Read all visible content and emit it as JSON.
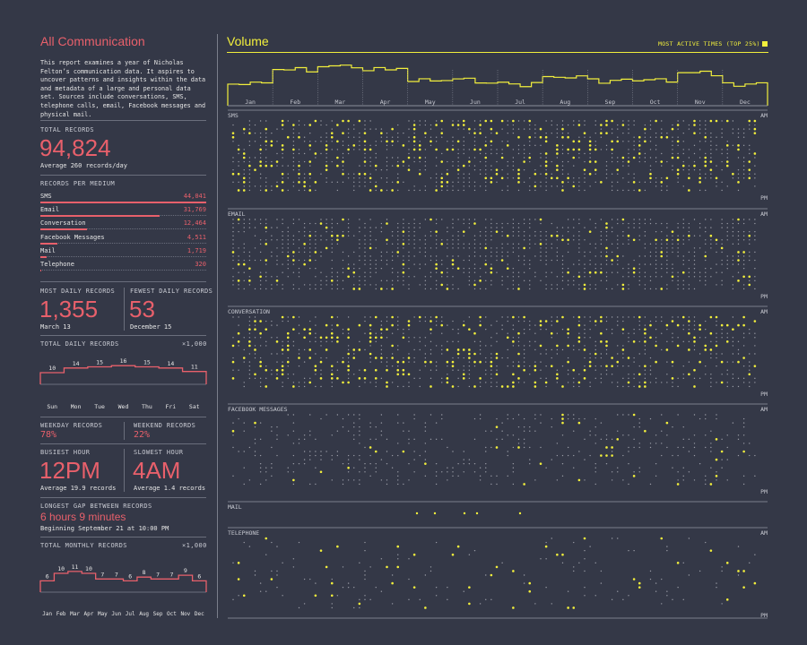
{
  "left": {
    "title": "All Communication",
    "intro": "This report examines a year of Nicholas Felton’s communication data. It aspires to uncover patterns and insights within the data and metadata of a large and personal data set. Sources include conversations, SMS, telephone calls, email, Facebook messages and physical mail.",
    "total_records_label": "TOTAL RECORDS",
    "total_records": "94,824",
    "average_note": "Average 260 records/day",
    "per_medium_label": "RECORDS PER MEDIUM",
    "mediums": [
      {
        "name": "SMS",
        "value": "44,041",
        "count": 44041
      },
      {
        "name": "Email",
        "value": "31,769",
        "count": 31769
      },
      {
        "name": "Conversation",
        "value": "12,464",
        "count": 12464
      },
      {
        "name": "Facebook Messages",
        "value": "4,511",
        "count": 4511
      },
      {
        "name": "Mail",
        "value": "1,719",
        "count": 1719
      },
      {
        "name": "Telephone",
        "value": "320",
        "count": 320
      }
    ],
    "most_daily_label": "MOST DAILY RECORDS",
    "most_daily": "1,355",
    "most_daily_date": "March 13",
    "fewest_daily_label": "FEWEST DAILY RECORDS",
    "fewest_daily": "53",
    "fewest_daily_date": "December 15",
    "weekday_label": "WEEKDAY RECORDS",
    "weekday_value": "78%",
    "weekend_label": "WEEKEND RECORDS",
    "weekend_value": "22%",
    "busiest_label": "BUSIEST HOUR",
    "busiest_value": "12PM",
    "busiest_note": "Average 19.9 records",
    "slowest_label": "SLOWEST HOUR",
    "slowest_value": "4AM",
    "slowest_note": "Average 1.4 records",
    "gap_label": "LONGEST GAP BETWEEN RECORDS",
    "gap_value": "6 hours 9 minutes",
    "gap_note": "Beginning September 21 at 10:00 PM"
  },
  "main": {
    "title": "Volume",
    "legend_label": "MOST ACTIVE TIMES (TOP 25%)",
    "am_label": "AM",
    "pm_label": "PM",
    "rows": [
      {
        "name": "SMS"
      },
      {
        "name": "EMAIL"
      },
      {
        "name": "CONVERSATION"
      },
      {
        "name": "FACEBOOK MESSAGES"
      },
      {
        "name": "MAIL"
      },
      {
        "name": "TELEPHONE"
      }
    ]
  },
  "chart_data": [
    {
      "type": "line",
      "title": "TOTAL DAILY RECORDS",
      "unit_label": "×1,000",
      "categories": [
        "Sun",
        "Mon",
        "Tue",
        "Wed",
        "Thu",
        "Fri",
        "Sat"
      ],
      "values": [
        10,
        14,
        15,
        16,
        15,
        14,
        11
      ],
      "ylim": [
        0,
        20
      ]
    },
    {
      "type": "line",
      "title": "TOTAL MONTHLY RECORDS",
      "unit_label": "×1,000",
      "categories": [
        "Jan",
        "Feb",
        "Mar",
        "Apr",
        "May",
        "Jun",
        "Jul",
        "Aug",
        "Sep",
        "Oct",
        "Nov",
        "Dec"
      ],
      "values": [
        6,
        10,
        11,
        10,
        7,
        7,
        6,
        8,
        7,
        7,
        9,
        6
      ],
      "ylim": [
        0,
        14
      ]
    },
    {
      "type": "area",
      "title": "Volume",
      "categories": [
        "Jan",
        "Feb",
        "Mar",
        "Apr",
        "May",
        "Jun",
        "Jul",
        "Aug",
        "Sep",
        "Oct",
        "Nov",
        "Dec"
      ],
      "values": [
        6,
        10,
        11,
        10,
        7,
        7,
        6,
        8,
        7,
        7,
        9,
        6
      ]
    }
  ],
  "colors": {
    "background": "#343847",
    "accent_red": "#e8606b",
    "accent_yellow": "#f2ef3c",
    "dot": "#9a9ca6"
  }
}
